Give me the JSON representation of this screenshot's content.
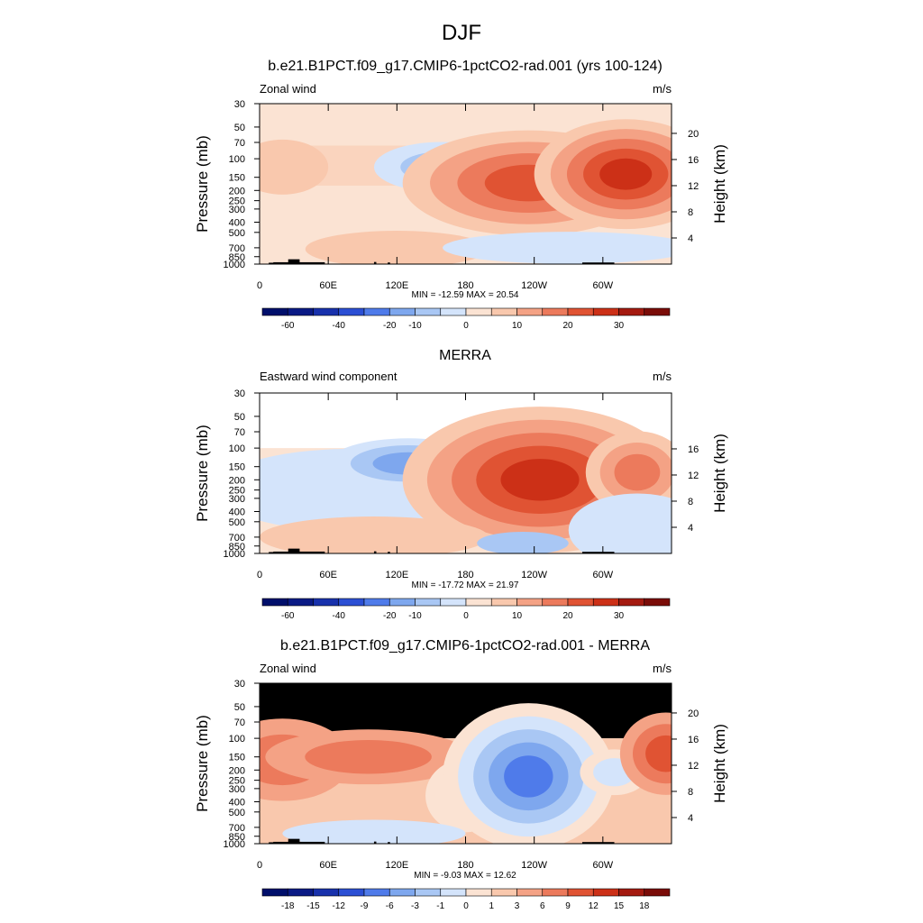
{
  "page": {
    "title": "DJF"
  },
  "colors": {
    "contour_outer": "#fbe3d3",
    "contour_pos": [
      "#f9c8ad",
      "#f4a285",
      "#ec7a5c",
      "#e05333",
      "#cc3017",
      "#a41a10",
      "#7a0c08"
    ],
    "contour_neg": [
      "#d4e4fb",
      "#a9c7f4",
      "#7ea7ee",
      "#4f7bea",
      "#2b4fd4",
      "#1831ac",
      "#0a1a85",
      "#000f6b"
    ],
    "land_mask": "#000000"
  },
  "chart_data": [
    {
      "type": "heatmap",
      "title": "b.e21.B1PCT.f09_g17.CMIP6-1pctCO2-rad.001 (yrs 100-124)",
      "left_label": "Zonal wind",
      "right_label": "m/s",
      "ylabel": "Pressure (mb)",
      "y2label": "Height (km)",
      "xticks": [
        "0",
        "60E",
        "120E",
        "180",
        "120W",
        "60W"
      ],
      "yticks": [
        "30",
        "50",
        "70",
        "100",
        "150",
        "200",
        "250",
        "300",
        "400",
        "500",
        "700",
        "850",
        "1000"
      ],
      "y2ticks": [
        "4",
        "8",
        "12",
        "16",
        "20"
      ],
      "stats": "MIN = -12.59  MAX =  20.54",
      "colorbar_labels": [
        "-60",
        "-40",
        "-20",
        "-10",
        "0",
        "10",
        "20",
        "30"
      ],
      "data_top_mb": 30
    },
    {
      "type": "heatmap",
      "title": "MERRA",
      "left_label": "Eastward wind component",
      "right_label": "m/s",
      "ylabel": "Pressure (mb)",
      "y2label": "Height (km)",
      "xticks": [
        "0",
        "60E",
        "120E",
        "180",
        "120W",
        "60W"
      ],
      "yticks": [
        "30",
        "50",
        "70",
        "100",
        "150",
        "200",
        "250",
        "300",
        "400",
        "500",
        "700",
        "850",
        "1000"
      ],
      "y2ticks": [
        "4",
        "8",
        "12",
        "16"
      ],
      "stats": "MIN = -17.72  MAX =  21.97",
      "colorbar_labels": [
        "-60",
        "-40",
        "-20",
        "-10",
        "0",
        "10",
        "20",
        "30"
      ],
      "data_top_mb": 100
    },
    {
      "type": "heatmap",
      "title": "b.e21.B1PCT.f09_g17.CMIP6-1pctCO2-rad.001 - MERRA",
      "left_label": "Zonal wind",
      "right_label": "m/s",
      "ylabel": "Pressure (mb)",
      "y2label": "Height (km)",
      "xticks": [
        "0",
        "60E",
        "120E",
        "180",
        "120W",
        "60W"
      ],
      "yticks": [
        "30",
        "50",
        "70",
        "100",
        "150",
        "200",
        "250",
        "300",
        "400",
        "500",
        "700",
        "850",
        "1000"
      ],
      "y2ticks": [
        "4",
        "8",
        "12",
        "16",
        "20"
      ],
      "stats": "MIN = -9.03  MAX =  12.62",
      "colorbar_labels": [
        "-18",
        "-15",
        "-12",
        "-9",
        "-6",
        "-3",
        "-1",
        "0",
        "1",
        "3",
        "6",
        "9",
        "12",
        "15",
        "18"
      ],
      "data_top_mb": 100
    }
  ]
}
